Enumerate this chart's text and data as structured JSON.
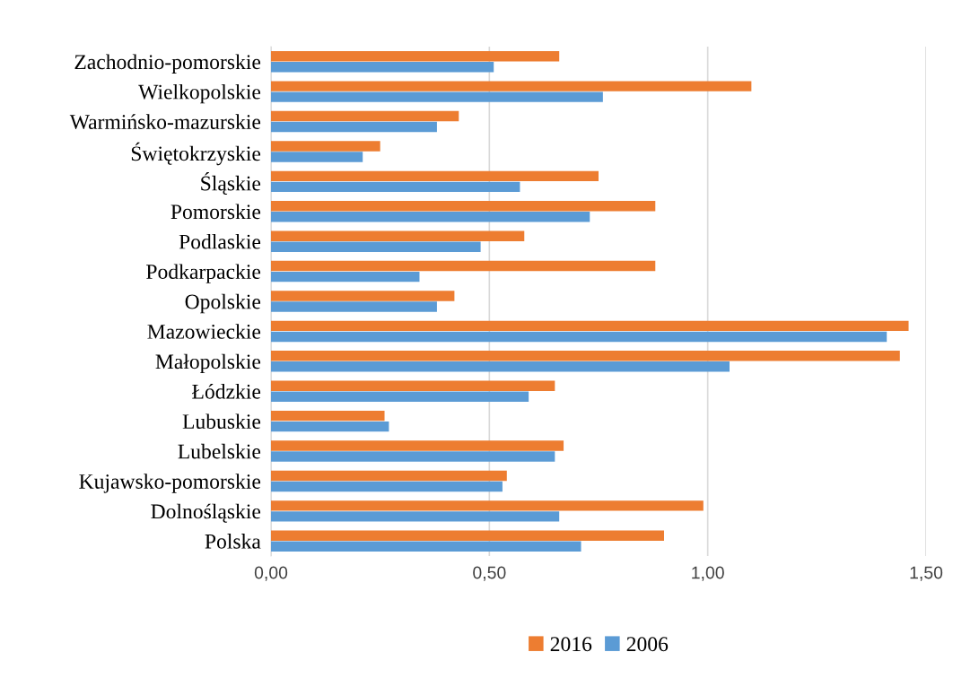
{
  "chart_data": {
    "type": "bar",
    "orientation": "horizontal",
    "categories": [
      "Zachodnio-pomorskie",
      "Wielkopolskie",
      "Warmińsko-mazurskie",
      "Świętokrzyskie",
      "Śląskie",
      "Pomorskie",
      "Podlaskie",
      "Podkarpackie",
      "Opolskie",
      "Mazowieckie",
      "Małopolskie",
      "Łódzkie",
      "Lubuskie",
      "Lubelskie",
      "Kujawsko-pomorskie",
      "Dolnośląskie",
      "Polska"
    ],
    "series": [
      {
        "name": "2016",
        "color": "#ed7d31",
        "values": [
          0.66,
          1.1,
          0.43,
          0.25,
          0.75,
          0.88,
          0.58,
          0.88,
          0.42,
          1.46,
          1.44,
          0.65,
          0.26,
          0.67,
          0.54,
          0.99,
          0.9
        ]
      },
      {
        "name": "2006",
        "color": "#5b9bd5",
        "values": [
          0.51,
          0.76,
          0.38,
          0.21,
          0.57,
          0.73,
          0.48,
          0.34,
          0.38,
          1.41,
          1.05,
          0.59,
          0.27,
          0.65,
          0.53,
          0.66,
          0.71
        ]
      }
    ],
    "xlim": [
      0,
      1.5
    ],
    "xticks": [
      {
        "value": 0,
        "label": "0,00"
      },
      {
        "value": 0.5,
        "label": "0,50"
      },
      {
        "value": 1.0,
        "label": "1,00"
      },
      {
        "value": 1.5,
        "label": "1,50"
      }
    ],
    "grid": "x",
    "legend": "bottom"
  }
}
